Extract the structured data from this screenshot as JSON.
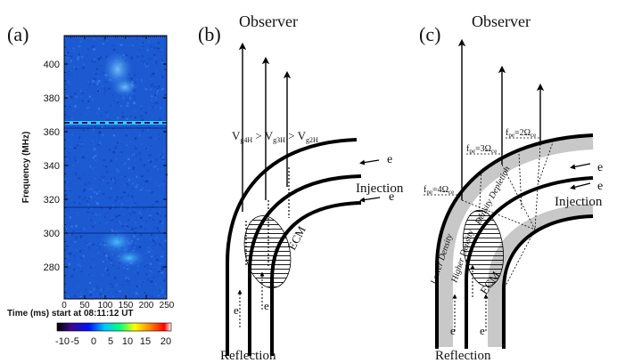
{
  "panels": {
    "a": {
      "label": "(a)",
      "ylabel": "Frequency (MHz)",
      "yticks": [
        "400",
        "380",
        "360",
        "340",
        "320",
        "300",
        "280"
      ],
      "xticks": [
        "0",
        "50",
        "100",
        "150",
        "200",
        "250"
      ],
      "xlabel": "Time (ms) start at 08:11:12 UT",
      "colorbar_ticks": [
        "-10",
        "-5",
        "0",
        "5",
        "10",
        "15",
        "20"
      ]
    },
    "b": {
      "label": "(b)",
      "observer": "Observer",
      "velocity_relation": "Vg4H > Vg3H > Vg2H",
      "velocity_parts": [
        "V",
        "g4H",
        " > ",
        "V",
        "g3H",
        " > ",
        "V",
        "g2H"
      ],
      "electron_label": "e",
      "injection": "Injection",
      "ecm": "ECM",
      "reflection": "Reflection"
    },
    "c": {
      "label": "(c)",
      "observer": "Observer",
      "fpe_labels": [
        {
          "text": "fpe=4Ωce",
          "main": "f",
          "sub1": "pe",
          "eq": "=4Ω",
          "sub2": "ce"
        },
        {
          "text": "fpe=3Ωce",
          "main": "f",
          "sub1": "pe",
          "eq": "=3Ω",
          "sub2": "ce"
        },
        {
          "text": "fpe=2Ωce",
          "main": "f",
          "sub1": "pe",
          "eq": "=2Ω",
          "sub2": "ce"
        }
      ],
      "lower_density": "Lower Density",
      "higher_density": "Higher Density",
      "density_depletion": "Density Depletion",
      "electron_label": "e",
      "injection": "Injection",
      "ecm": "ECM",
      "reflection": "Reflection"
    }
  },
  "colors": {
    "spectrogram_bg": "#1f5fd8",
    "spectrogram_dark": "#123fb0",
    "density_band": "#c8c8c8",
    "colorbar": [
      "#000000",
      "#3b0a8a",
      "#0000ff",
      "#00c8ff",
      "#00ff80",
      "#ffff00",
      "#ff8000",
      "#ff0000",
      "#ffffff"
    ]
  }
}
